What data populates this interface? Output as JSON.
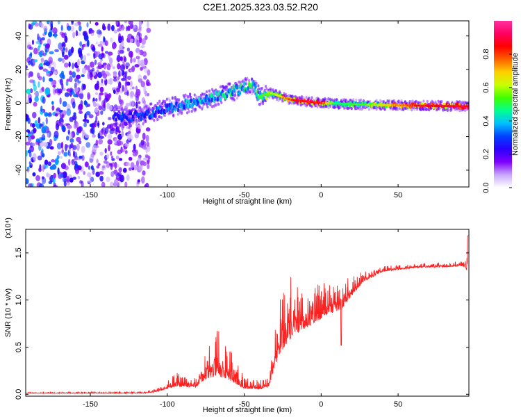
{
  "figure_title": "C2E1.2025.323.03.52.R20",
  "chart_data": [
    {
      "type": "heatmap",
      "name": "spectrogram",
      "xlabel": "Height of straight line (km)",
      "ylabel": "Frequency (Hz)",
      "xlim": [
        -192,
        96
      ],
      "ylim": [
        -50,
        49
      ],
      "xticks": [
        -150,
        -100,
        -50,
        0,
        50
      ],
      "yticks": [
        -40,
        -20,
        0,
        20,
        40
      ],
      "colorbar": {
        "label": "Normalized spectral amplitude",
        "range": [
          0.0,
          1.0
        ],
        "ticks": [
          0.0,
          0.2,
          0.4,
          0.6,
          0.8
        ],
        "tick_labels": [
          "0.0",
          "0.2",
          "0.4",
          "0.6",
          "0.8"
        ],
        "stops": [
          "#ffffff",
          "#c8a8ff",
          "#7f00ff",
          "#2a00ff",
          "#0040ff",
          "#00c0ff",
          "#00ff90",
          "#40ff00",
          "#c8ff00",
          "#ffd000",
          "#ff6000",
          "#ff0000",
          "#ff0060",
          "#ff30a0"
        ]
      },
      "ridge_frequency": [
        {
          "x": -130,
          "f": -9
        },
        {
          "x": -115,
          "f": -7
        },
        {
          "x": -100,
          "f": -3
        },
        {
          "x": -80,
          "f": 1
        },
        {
          "x": -60,
          "f": 6
        },
        {
          "x": -45,
          "f": 11
        },
        {
          "x": -40,
          "f": 4
        },
        {
          "x": -33,
          "f": 6
        },
        {
          "x": -20,
          "f": 2
        },
        {
          "x": 0,
          "f": 0
        },
        {
          "x": 30,
          "f": -1
        },
        {
          "x": 60,
          "f": -1.5
        },
        {
          "x": 96,
          "f": -2
        }
      ],
      "ridge_amplitude": [
        {
          "x": -130,
          "a": 0.3
        },
        {
          "x": -100,
          "a": 0.35
        },
        {
          "x": -80,
          "a": 0.45
        },
        {
          "x": -50,
          "a": 0.5
        },
        {
          "x": -35,
          "a": 0.6
        },
        {
          "x": -15,
          "a": 0.95
        },
        {
          "x": 0,
          "a": 0.9
        },
        {
          "x": 10,
          "a": 0.5
        },
        {
          "x": 30,
          "a": 0.6
        },
        {
          "x": 60,
          "a": 0.9
        },
        {
          "x": 90,
          "a": 0.95
        }
      ]
    },
    {
      "type": "line",
      "name": "snr",
      "xlabel": "Height of straight line (km)",
      "ylabel": "SNR (10 * v/v)",
      "scale_label": "(x10⁴)",
      "xlim": [
        -192,
        96
      ],
      "ylim": [
        -0.02,
        1.75
      ],
      "xticks": [
        -150,
        -100,
        -50,
        0,
        50
      ],
      "yticks": [
        0.0,
        0.5,
        1.0,
        1.5
      ],
      "ytick_labels": [
        "0.0",
        "0.5",
        "1.0",
        "1.5"
      ],
      "color": "#ff2020",
      "envelope": [
        {
          "x": -192,
          "base": 0.01,
          "amp": 0.01
        },
        {
          "x": -115,
          "base": 0.01,
          "amp": 0.02
        },
        {
          "x": -105,
          "base": 0.03,
          "amp": 0.05
        },
        {
          "x": -95,
          "base": 0.08,
          "amp": 0.15
        },
        {
          "x": -82,
          "base": 0.07,
          "amp": 0.12
        },
        {
          "x": -75,
          "base": 0.15,
          "amp": 0.3
        },
        {
          "x": -68,
          "base": 0.2,
          "amp": 0.55
        },
        {
          "x": -60,
          "base": 0.15,
          "amp": 0.35
        },
        {
          "x": -50,
          "base": 0.06,
          "amp": 0.12
        },
        {
          "x": -40,
          "base": 0.05,
          "amp": 0.1
        },
        {
          "x": -34,
          "base": 0.08,
          "amp": 0.1
        },
        {
          "x": -28,
          "base": 0.4,
          "amp": 0.6
        },
        {
          "x": -22,
          "base": 0.55,
          "amp": 0.75
        },
        {
          "x": -15,
          "base": 0.65,
          "amp": 0.5
        },
        {
          "x": -5,
          "base": 0.75,
          "amp": 0.4
        },
        {
          "x": 5,
          "base": 0.85,
          "amp": 0.35
        },
        {
          "x": 13,
          "base": 0.9,
          "amp": 0.3
        },
        {
          "x": 20,
          "base": 1.05,
          "amp": 0.2
        },
        {
          "x": 28,
          "base": 1.2,
          "amp": 0.12
        },
        {
          "x": 40,
          "base": 1.3,
          "amp": 0.06
        },
        {
          "x": 60,
          "base": 1.34,
          "amp": 0.05
        },
        {
          "x": 80,
          "base": 1.35,
          "amp": 0.05
        },
        {
          "x": 92,
          "base": 1.36,
          "amp": 0.07
        },
        {
          "x": 96,
          "base": 1.3,
          "amp": 0.25
        }
      ]
    }
  ]
}
